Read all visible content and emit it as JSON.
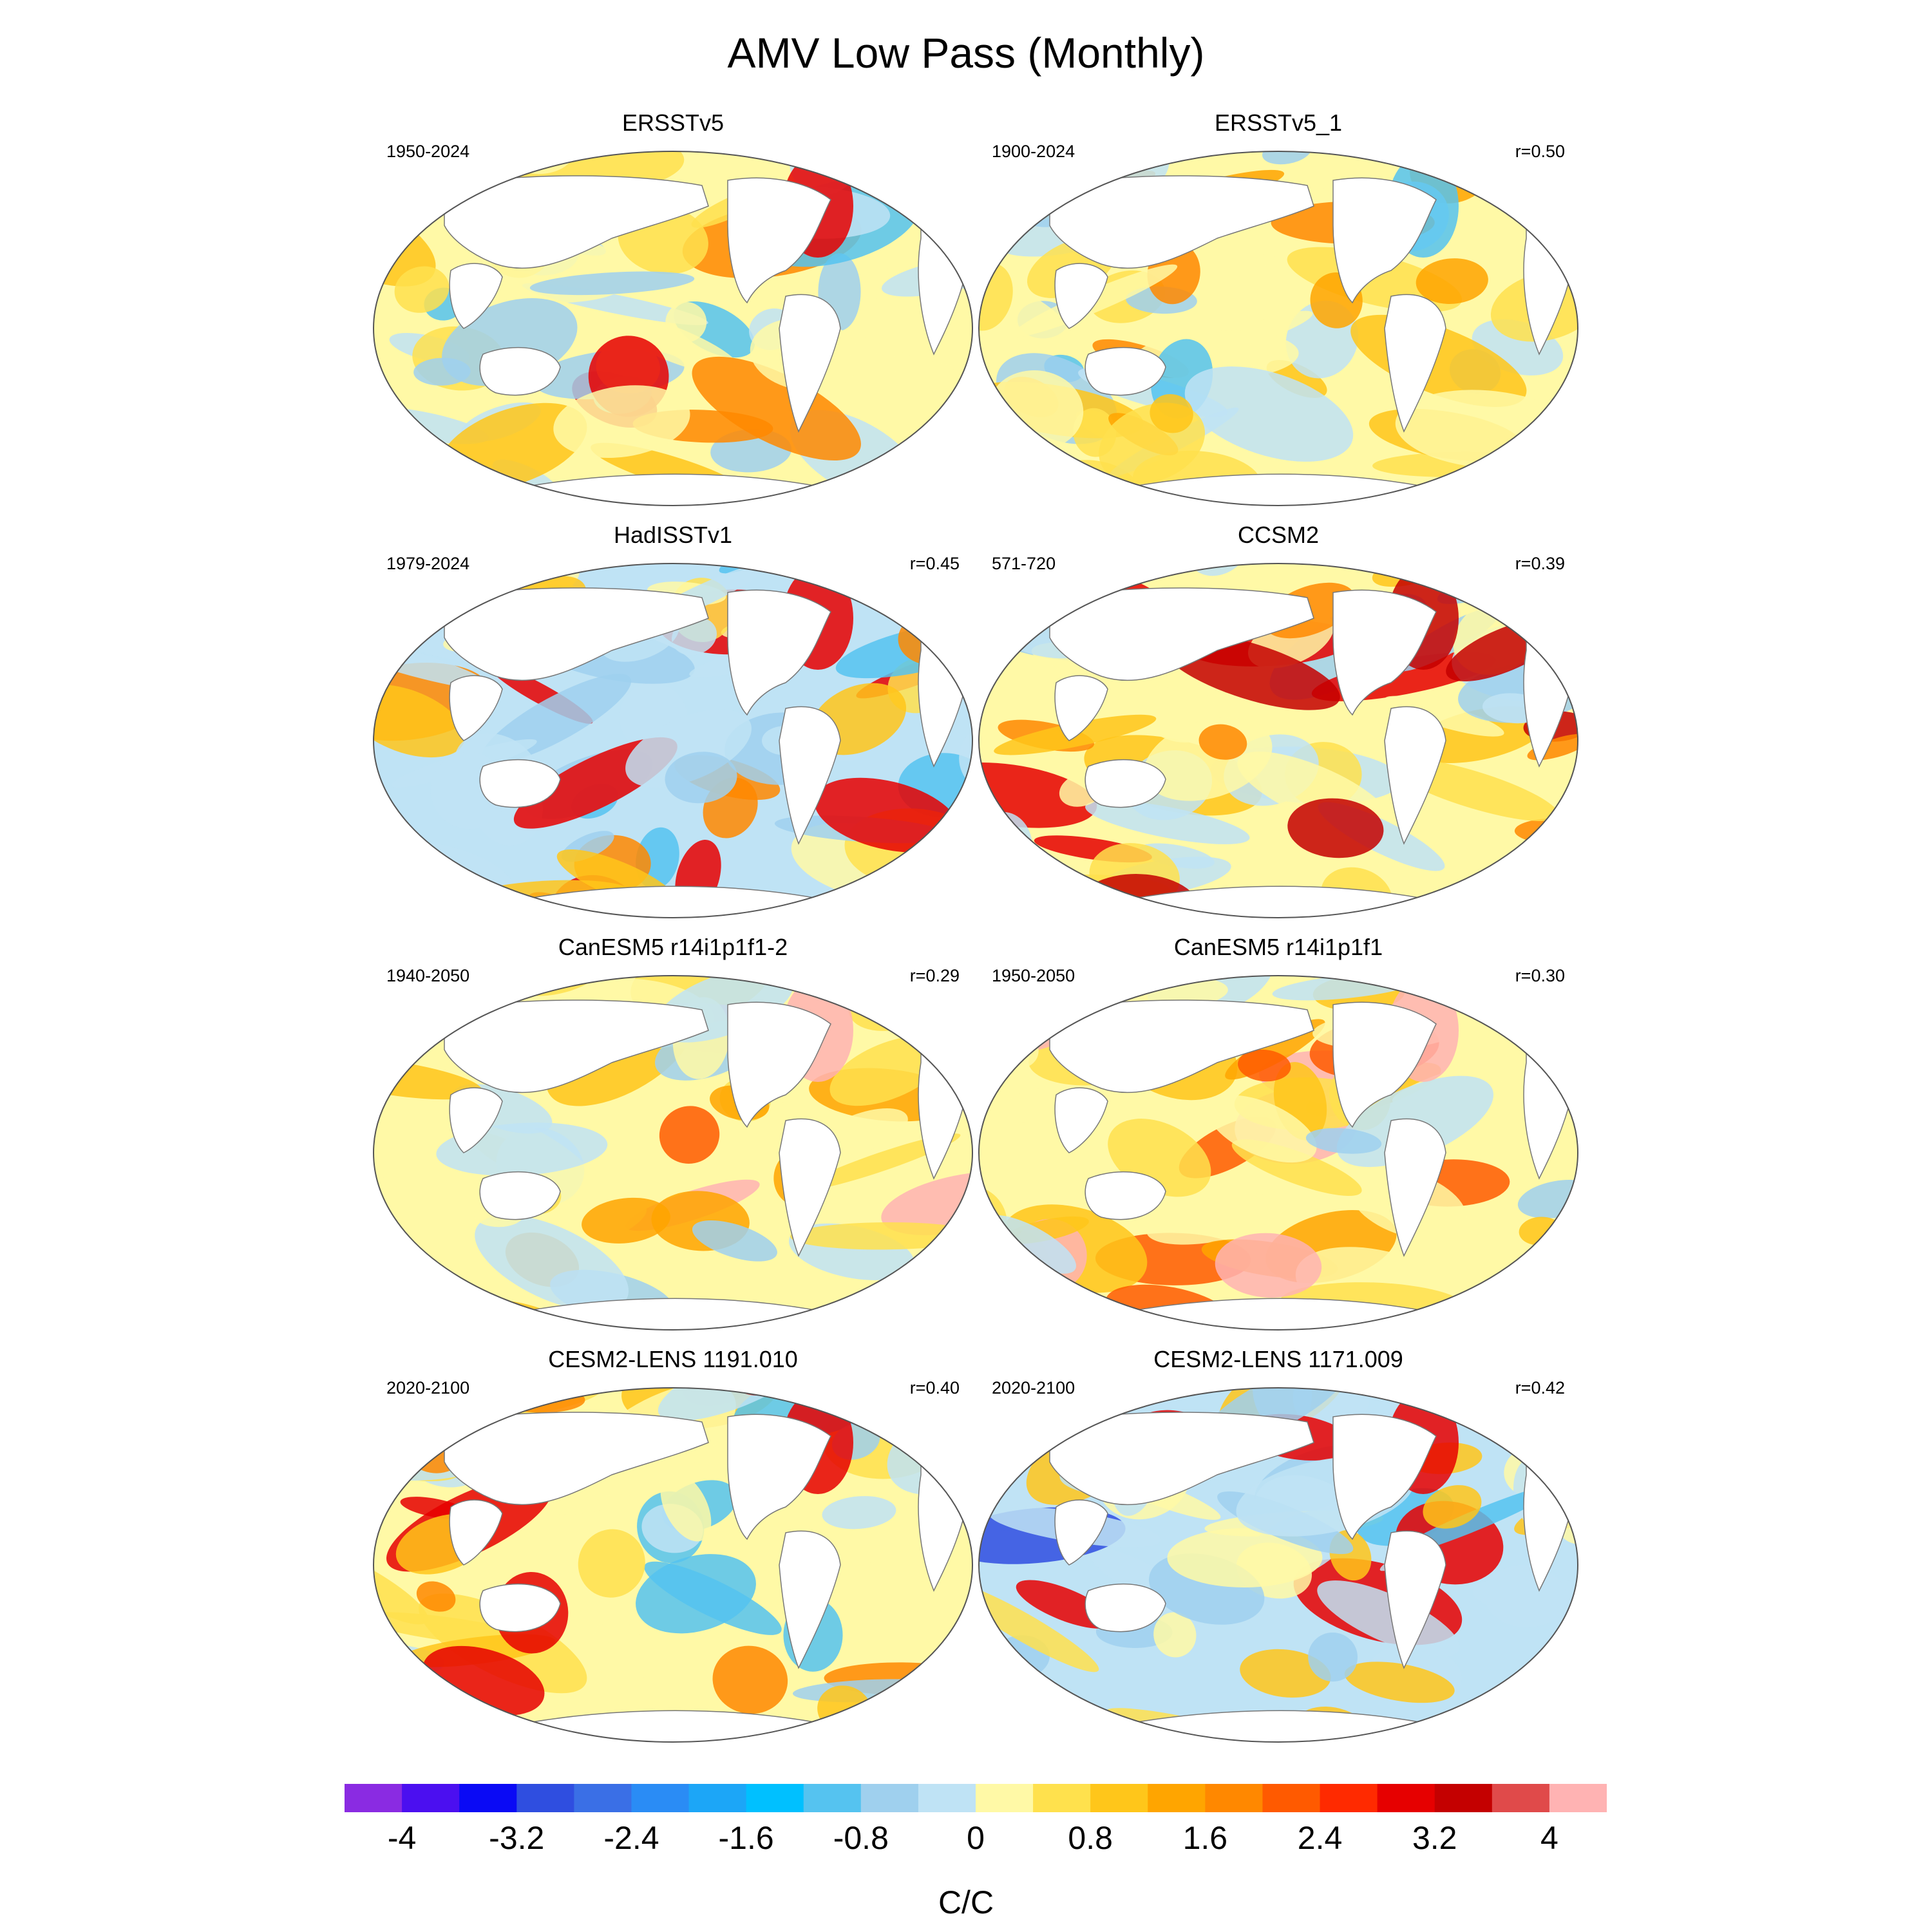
{
  "title": "AMV Low Pass (Monthly)",
  "colorbar": {
    "unit_label": "C/C",
    "tick_labels": [
      "-4",
      "-3.2",
      "-2.4",
      "-1.6",
      "-0.8",
      "0",
      "0.8",
      "1.6",
      "2.4",
      "3.2",
      "4"
    ],
    "colors": [
      "#8a2be2",
      "#4b0ff0",
      "#0a0af5",
      "#2f4ee0",
      "#3a6fe6",
      "#2a8cf5",
      "#1ca6f7",
      "#00c0ff",
      "#55c3f0",
      "#9fd0ee",
      "#bfe3f5",
      "#fff9a6",
      "#ffe14d",
      "#ffc61a",
      "#ffa500",
      "#ff8800",
      "#ff5a00",
      "#ff2a00",
      "#e60000",
      "#c40000",
      "#e04a4a",
      "#ffb3b3"
    ]
  },
  "panels": [
    {
      "title": "ERSSTv5",
      "period": "1950-2024",
      "correlation": "",
      "palette": [
        "#fff9a6",
        "#bfe3f5",
        "#ffe14d",
        "#9fd0ee",
        "#ffc61a",
        "#55c3f0",
        "#ff8800",
        "#e60000"
      ]
    },
    {
      "title": "ERSSTv5_1",
      "period": "1900-2024",
      "correlation": "r=0.50",
      "palette": [
        "#fff9a6",
        "#ffe14d",
        "#bfe3f5",
        "#ffc61a",
        "#9fd0ee",
        "#ffa500",
        "#ff8800",
        "#55c3f0"
      ]
    },
    {
      "title": "HadISSTv1",
      "period": "1979-2024",
      "correlation": "r=0.45",
      "palette": [
        "#bfe3f5",
        "#fff9a6",
        "#9fd0ee",
        "#ffe14d",
        "#55c3f0",
        "#ffc61a",
        "#ff8800",
        "#e60000"
      ]
    },
    {
      "title": "CCSM2",
      "period": "571-720",
      "correlation": "r=0.39",
      "palette": [
        "#fff9a6",
        "#bfe3f5",
        "#ffe14d",
        "#9fd0ee",
        "#ffc61a",
        "#ff8800",
        "#e60000",
        "#c40000"
      ]
    },
    {
      "title": "CanESM5 r14i1p1f1-2",
      "period": "1940-2050",
      "correlation": "r=0.29",
      "palette": [
        "#fff9a6",
        "#ffe14d",
        "#bfe3f5",
        "#ffc61a",
        "#9fd0ee",
        "#ffa500",
        "#ff5a00",
        "#ffb3b3"
      ]
    },
    {
      "title": "CanESM5 r14i1p1f1",
      "period": "1950-2050",
      "correlation": "r=0.30",
      "palette": [
        "#fff9a6",
        "#ffe14d",
        "#bfe3f5",
        "#ffc61a",
        "#9fd0ee",
        "#ffa500",
        "#ff5a00",
        "#ffb3b3"
      ]
    },
    {
      "title": "CESM2-LENS 1191.010",
      "period": "2020-2100",
      "correlation": "r=0.40",
      "palette": [
        "#fff9a6",
        "#bfe3f5",
        "#ffe14d",
        "#9fd0ee",
        "#ffc61a",
        "#55c3f0",
        "#ff8800",
        "#e60000"
      ]
    },
    {
      "title": "CESM2-LENS 1171.009",
      "period": "2020-2100",
      "correlation": "r=0.42",
      "palette": [
        "#bfe3f5",
        "#fff9a6",
        "#9fd0ee",
        "#ffe14d",
        "#55c3f0",
        "#ffc61a",
        "#2f4ee0",
        "#e60000"
      ]
    }
  ]
}
